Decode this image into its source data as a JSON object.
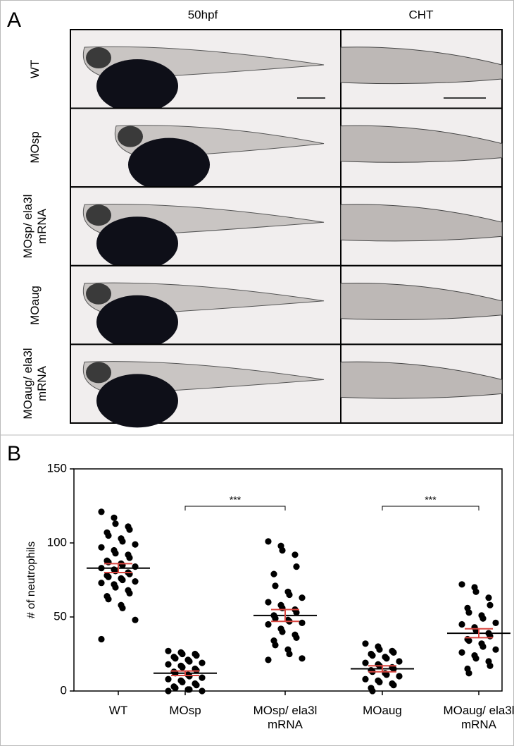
{
  "panel_a": {
    "label": "A",
    "columns": [
      "50hpf",
      "CHT"
    ],
    "rows": [
      "WT",
      "MOsp",
      "MOsp/ ela3l mRNA",
      "MOaug",
      "MOaug/ ela3l mRNA"
    ]
  },
  "chart_data": {
    "type": "dot",
    "panel_label": "B",
    "y_label": "# of neutrophils",
    "categories": [
      "WT",
      "MOsp",
      "MOsp/ ela3l mRNA",
      "MOaug",
      "MOaug/ ela3l mRNA"
    ],
    "values": [
      [
        121,
        117,
        113,
        111,
        109,
        107,
        105,
        103,
        101,
        99,
        97,
        95,
        93,
        92,
        90,
        88,
        87,
        86,
        85,
        84,
        83,
        82,
        81,
        80,
        79,
        78,
        77,
        76,
        75,
        74,
        73,
        72,
        70,
        68,
        66,
        64,
        62,
        58,
        56,
        48,
        35
      ],
      [
        27,
        26,
        25,
        25,
        24,
        23,
        22,
        21,
        20,
        19,
        18,
        17,
        16,
        15,
        14,
        13,
        12,
        11,
        10,
        9,
        8,
        7,
        6,
        5,
        4,
        3,
        2,
        1,
        1,
        0,
        0
      ],
      [
        101,
        98,
        95,
        92,
        84,
        79,
        71,
        67,
        65,
        63,
        60,
        58,
        56,
        55,
        53,
        51,
        49,
        48,
        47,
        46,
        45,
        42,
        40,
        38,
        36,
        34,
        31,
        28,
        25,
        22,
        21
      ],
      [
        32,
        30,
        28,
        27,
        26,
        25,
        24,
        23,
        22,
        20,
        19,
        18,
        17,
        16,
        15,
        14,
        13,
        12,
        11,
        10,
        8,
        7,
        6,
        5,
        4,
        2,
        0
      ],
      [
        72,
        70,
        67,
        63,
        58,
        56,
        53,
        51,
        49,
        46,
        45,
        43,
        41,
        39,
        37,
        35,
        34,
        32,
        30,
        28,
        26,
        24,
        22,
        20,
        17,
        15,
        12
      ]
    ],
    "means": [
      83,
      12,
      51,
      15,
      39
    ],
    "errors": [
      3,
      1.5,
      4,
      2,
      3
    ],
    "dot_color": "#000000",
    "mean_color": "#d9453f",
    "ylim": [
      0,
      150
    ],
    "yticks": [
      0,
      50,
      100,
      150
    ],
    "annotations": [
      {
        "text": "***",
        "categories": [
          "MOsp",
          "MOsp/ ela3l mRNA"
        ]
      },
      {
        "text": "***",
        "categories": [
          "MOaug",
          "MOaug/ ela3l mRNA"
        ]
      }
    ]
  }
}
